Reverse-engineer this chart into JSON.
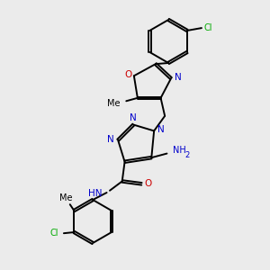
{
  "bg_color": "#ebebeb",
  "bond_color": "#000000",
  "nitrogen_color": "#0000cc",
  "oxygen_color": "#cc0000",
  "chlorine_color": "#00aa00",
  "line_width": 1.4,
  "dbo": 0.022,
  "xlim": [
    -1.8,
    2.2
  ],
  "ylim": [
    -2.6,
    2.6
  ]
}
